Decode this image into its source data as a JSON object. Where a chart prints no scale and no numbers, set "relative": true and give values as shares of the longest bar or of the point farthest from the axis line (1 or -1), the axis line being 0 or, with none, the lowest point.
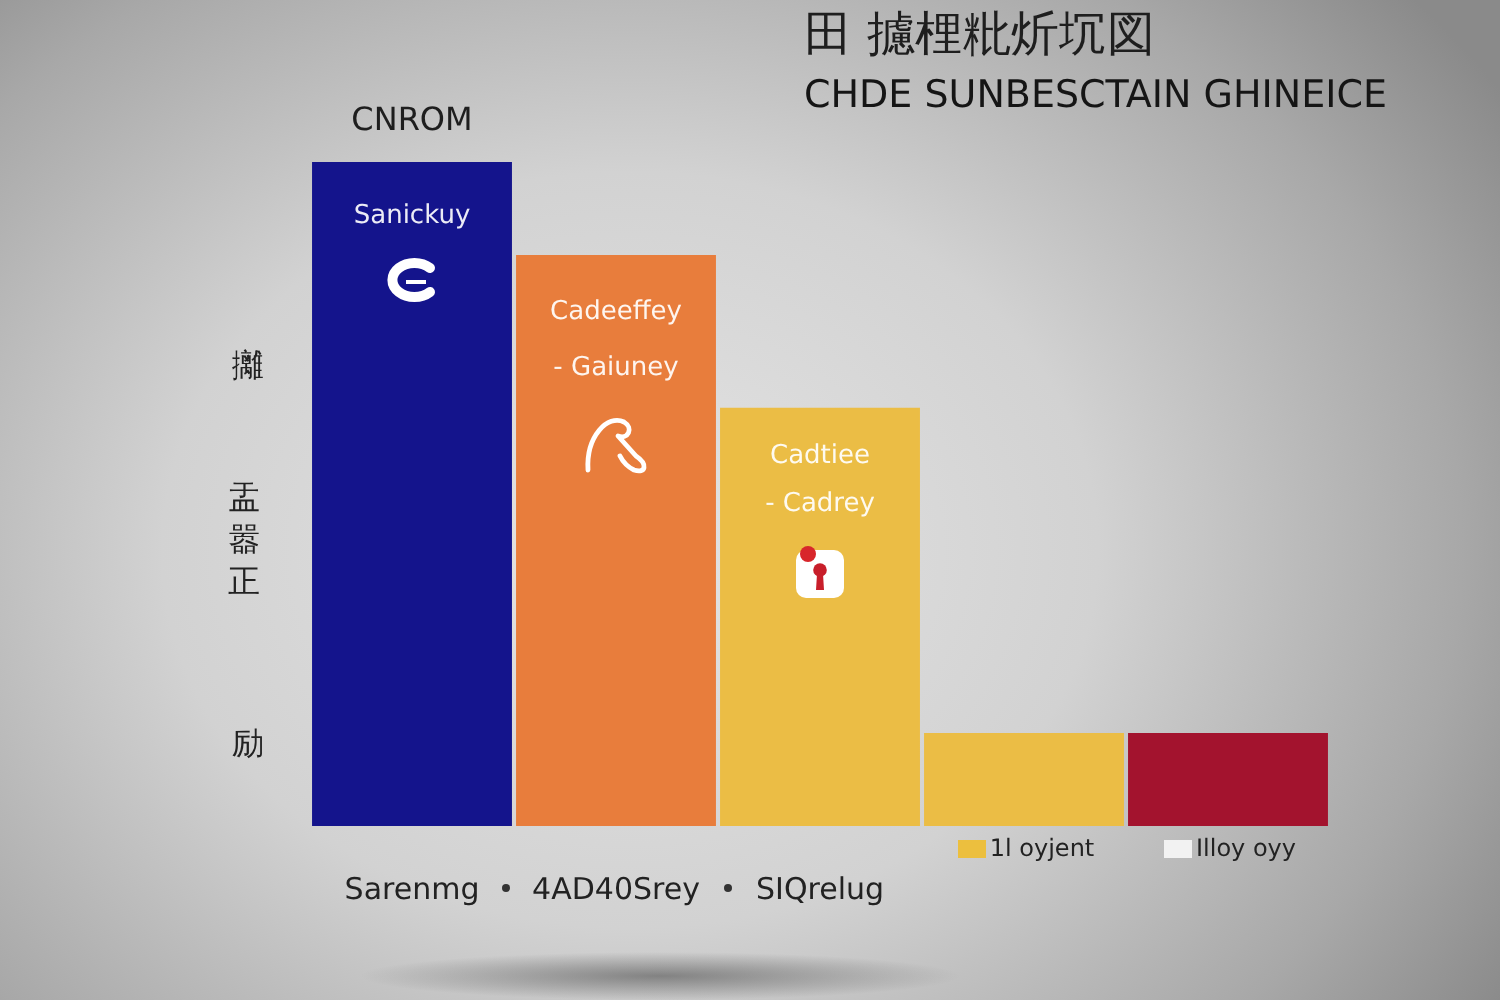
{
  "chart_data": {
    "type": "bar",
    "title": "田 攄梩粃炘坈図",
    "subtitle": "CHDE SUNBESCTAIN GHINEICE",
    "ylabel": "盂嚣正",
    "categories": [
      "Sarenmg",
      "4AD40Srey",
      "SIQrelug",
      "1l oyjent",
      "Illoy oyy"
    ],
    "values": [
      1,
      0.86,
      0.63,
      0.14,
      0.14
    ],
    "colors": [
      "#14148c",
      "#e87d3c",
      "#ebbd45",
      "#ebbd45",
      "#a3132e"
    ],
    "relative": true,
    "annotations": [
      "CNROM",
      "Sanickuy",
      "Cadeeffey",
      "- Gaiuney",
      "Cadtiee",
      "- Cadrey",
      "攡",
      "励"
    ]
  }
}
